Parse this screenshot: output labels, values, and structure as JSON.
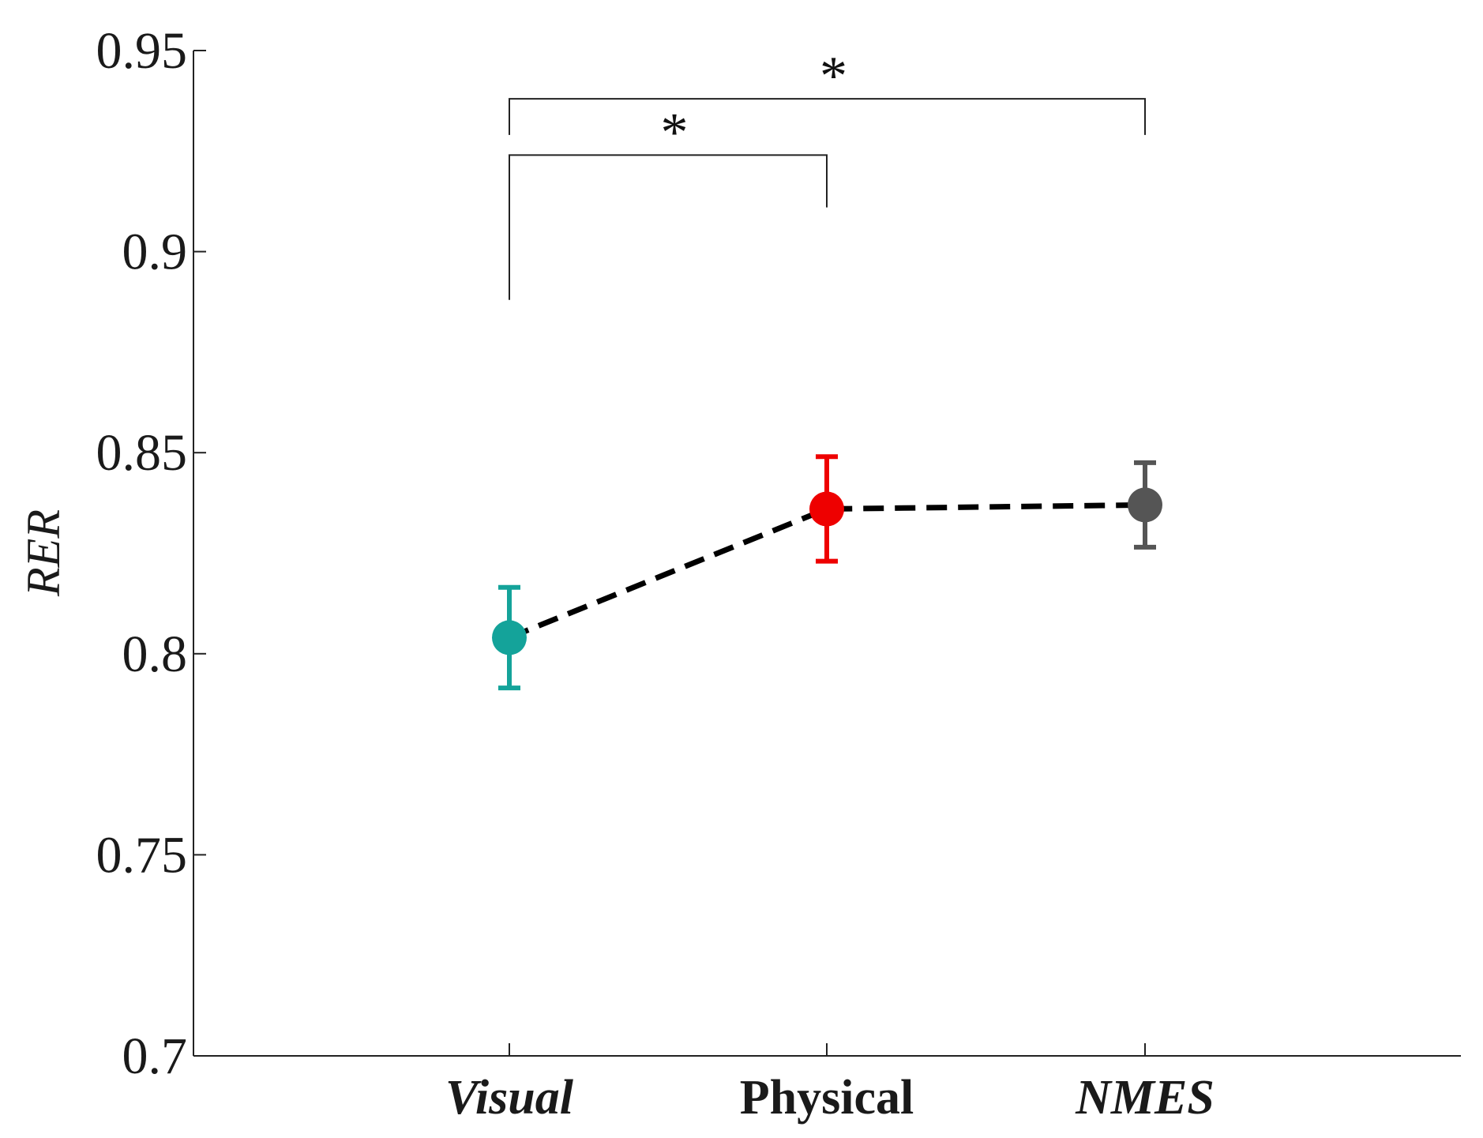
{
  "chart_data": {
    "type": "line",
    "title": "",
    "xlabel": "",
    "ylabel": "RER",
    "ylim": [
      0.7,
      0.95
    ],
    "yticks": [
      "0.7",
      "0.75",
      "0.8",
      "0.85",
      "0.9",
      "0.95"
    ],
    "categories": [
      "Visual",
      "Physical",
      "NMES"
    ],
    "category_styles": [
      "italic",
      "normal",
      "italic"
    ],
    "series": [
      {
        "values": [
          0.804,
          0.836,
          0.837
        ],
        "errors": [
          0.0125,
          0.013,
          0.0105
        ],
        "marker_colors": [
          "#14a39a",
          "#ee0000",
          "#555555"
        ],
        "line_style": "dashed",
        "line_color": "#000000"
      }
    ],
    "significance": [
      {
        "from": "Visual",
        "to": "Physical",
        "label": "*",
        "y": 0.924
      },
      {
        "from": "Visual",
        "to": "NMES",
        "label": "*",
        "y": 0.938
      }
    ],
    "grid": false,
    "legend": "none"
  }
}
